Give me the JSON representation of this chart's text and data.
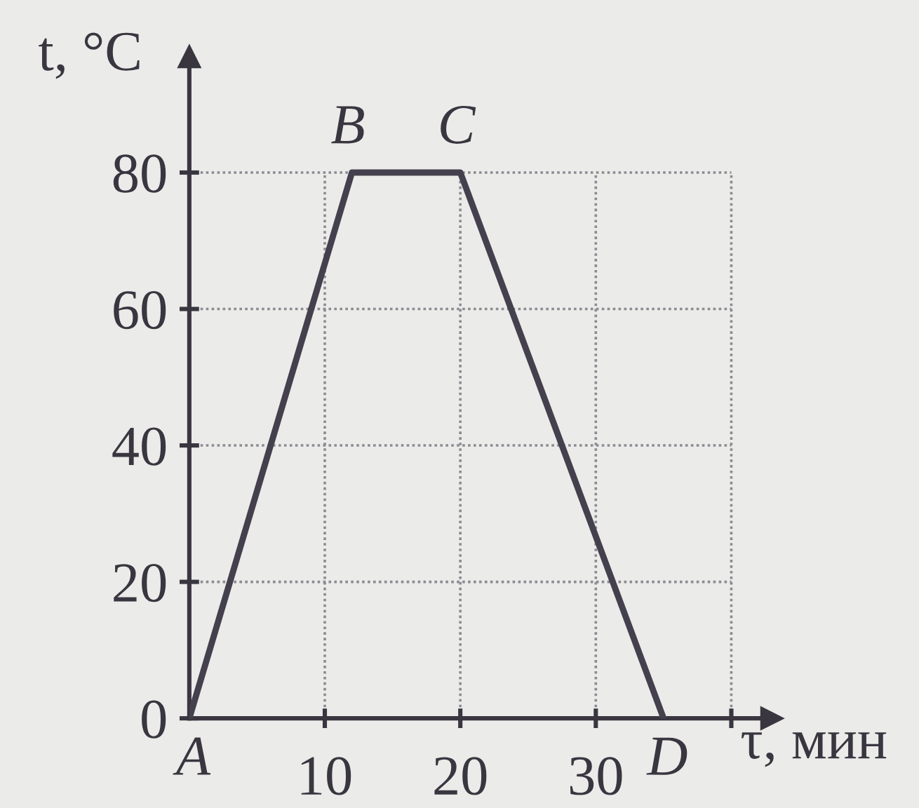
{
  "chart_data": {
    "type": "line",
    "xlabel": "τ, мин",
    "ylabel": "t, °C",
    "x": [
      0,
      12,
      20,
      35
    ],
    "series": [
      {
        "color": "#45404d",
        "values": [
          0,
          80,
          80,
          0
        ]
      }
    ],
    "xlim": [
      0,
      43
    ],
    "ylim": [
      0,
      97
    ],
    "xticks": [
      10,
      20,
      30,
      {
        "value": 40,
        "label": null
      }
    ],
    "yticks": [
      0,
      20,
      40,
      60,
      80
    ],
    "grid": true,
    "annotations": [
      {
        "text": "A",
        "x": 0,
        "y": 0
      },
      {
        "text": "B",
        "x": 12,
        "y": 80
      },
      {
        "text": "C",
        "x": 20,
        "y": 80
      },
      {
        "text": "D",
        "x": 35,
        "y": 0
      }
    ]
  }
}
